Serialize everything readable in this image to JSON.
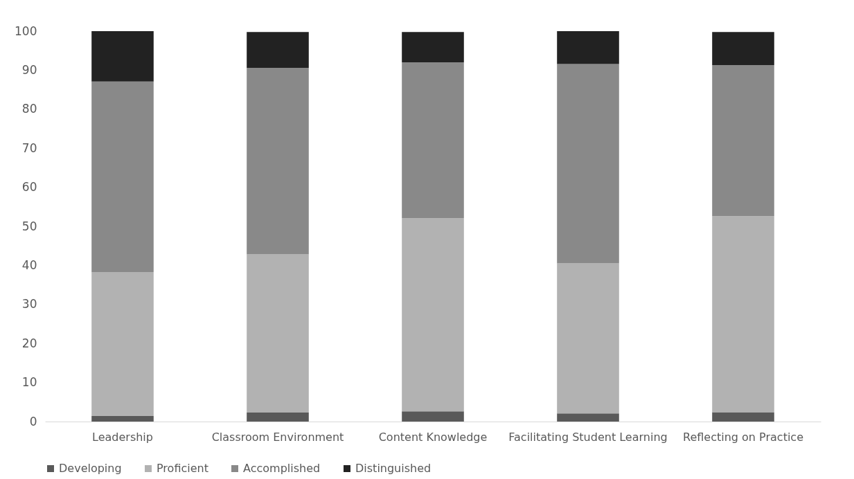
{
  "chart_data": {
    "type": "bar",
    "stacked": true,
    "categories": [
      "Leadership",
      "Classroom Environment",
      "Content Knowledge",
      "Facilitating Student Learning",
      "Reflecting on Practice"
    ],
    "series": [
      {
        "name": "Developing",
        "color": "#595959",
        "values": [
          1.4,
          2.3,
          2.6,
          2.1,
          2.4
        ]
      },
      {
        "name": "Proficient",
        "color": "#b2b2b2",
        "values": [
          36.9,
          40.5,
          49.5,
          38.4,
          50.2
        ]
      },
      {
        "name": "Accomplished",
        "color": "#898989",
        "values": [
          48.8,
          47.8,
          39.9,
          51.1,
          38.7
        ]
      },
      {
        "name": "Distinguished",
        "color": "#222222",
        "values": [
          12.9,
          9.2,
          7.8,
          8.4,
          8.5
        ]
      }
    ],
    "ylim": [
      0,
      100
    ],
    "yticks": [
      0,
      10,
      20,
      30,
      40,
      50,
      60,
      70,
      80,
      90,
      100
    ],
    "grid": false,
    "legend": "bottom"
  }
}
